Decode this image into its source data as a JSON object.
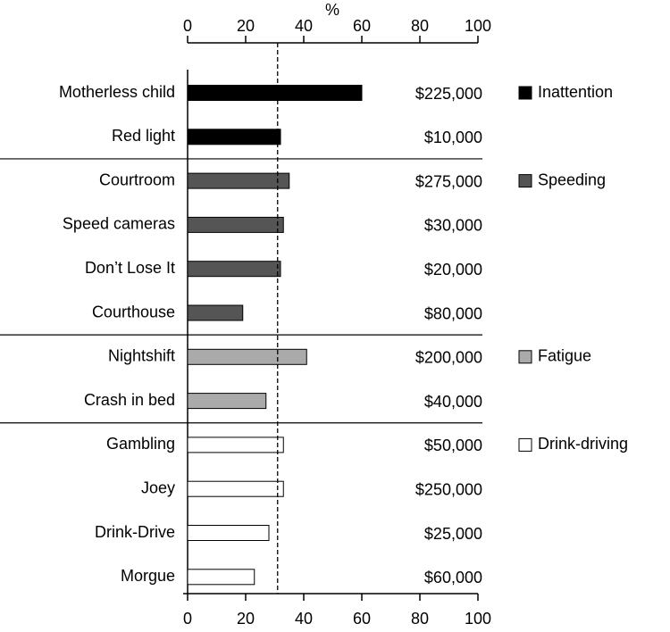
{
  "chart_data": {
    "type": "bar",
    "orientation": "horizontal",
    "axis_label": "%",
    "xlim": [
      0,
      100
    ],
    "xticks": [
      0,
      20,
      40,
      60,
      80,
      100
    ],
    "reference_line": 31,
    "groups": [
      {
        "name": "Inattention",
        "color": "#000000",
        "categories": [
          "Motherless child",
          "Red light"
        ],
        "values": [
          60,
          32
        ],
        "costs": [
          "$225,000",
          "$10,000"
        ]
      },
      {
        "name": "Speeding",
        "color": "#555555",
        "categories": [
          "Courtroom",
          "Speed cameras",
          "Don’t Lose It",
          "Courthouse"
        ],
        "values": [
          35,
          33,
          32,
          19
        ],
        "costs": [
          "$275,000",
          "$30,000",
          "$20,000",
          "$80,000"
        ]
      },
      {
        "name": "Fatigue",
        "color": "#aaaaaa",
        "categories": [
          "Nightshift",
          "Crash in bed"
        ],
        "values": [
          41,
          27
        ],
        "costs": [
          "$200,000",
          "$40,000"
        ]
      },
      {
        "name": "Drink-driving",
        "color": "#ffffff",
        "categories": [
          "Gambling",
          "Joey",
          "Drink-Drive",
          "Morgue"
        ],
        "values": [
          33,
          33,
          28,
          23
        ],
        "costs": [
          "$50,000",
          "$250,000",
          "$25,000",
          "$60,000"
        ]
      }
    ]
  }
}
